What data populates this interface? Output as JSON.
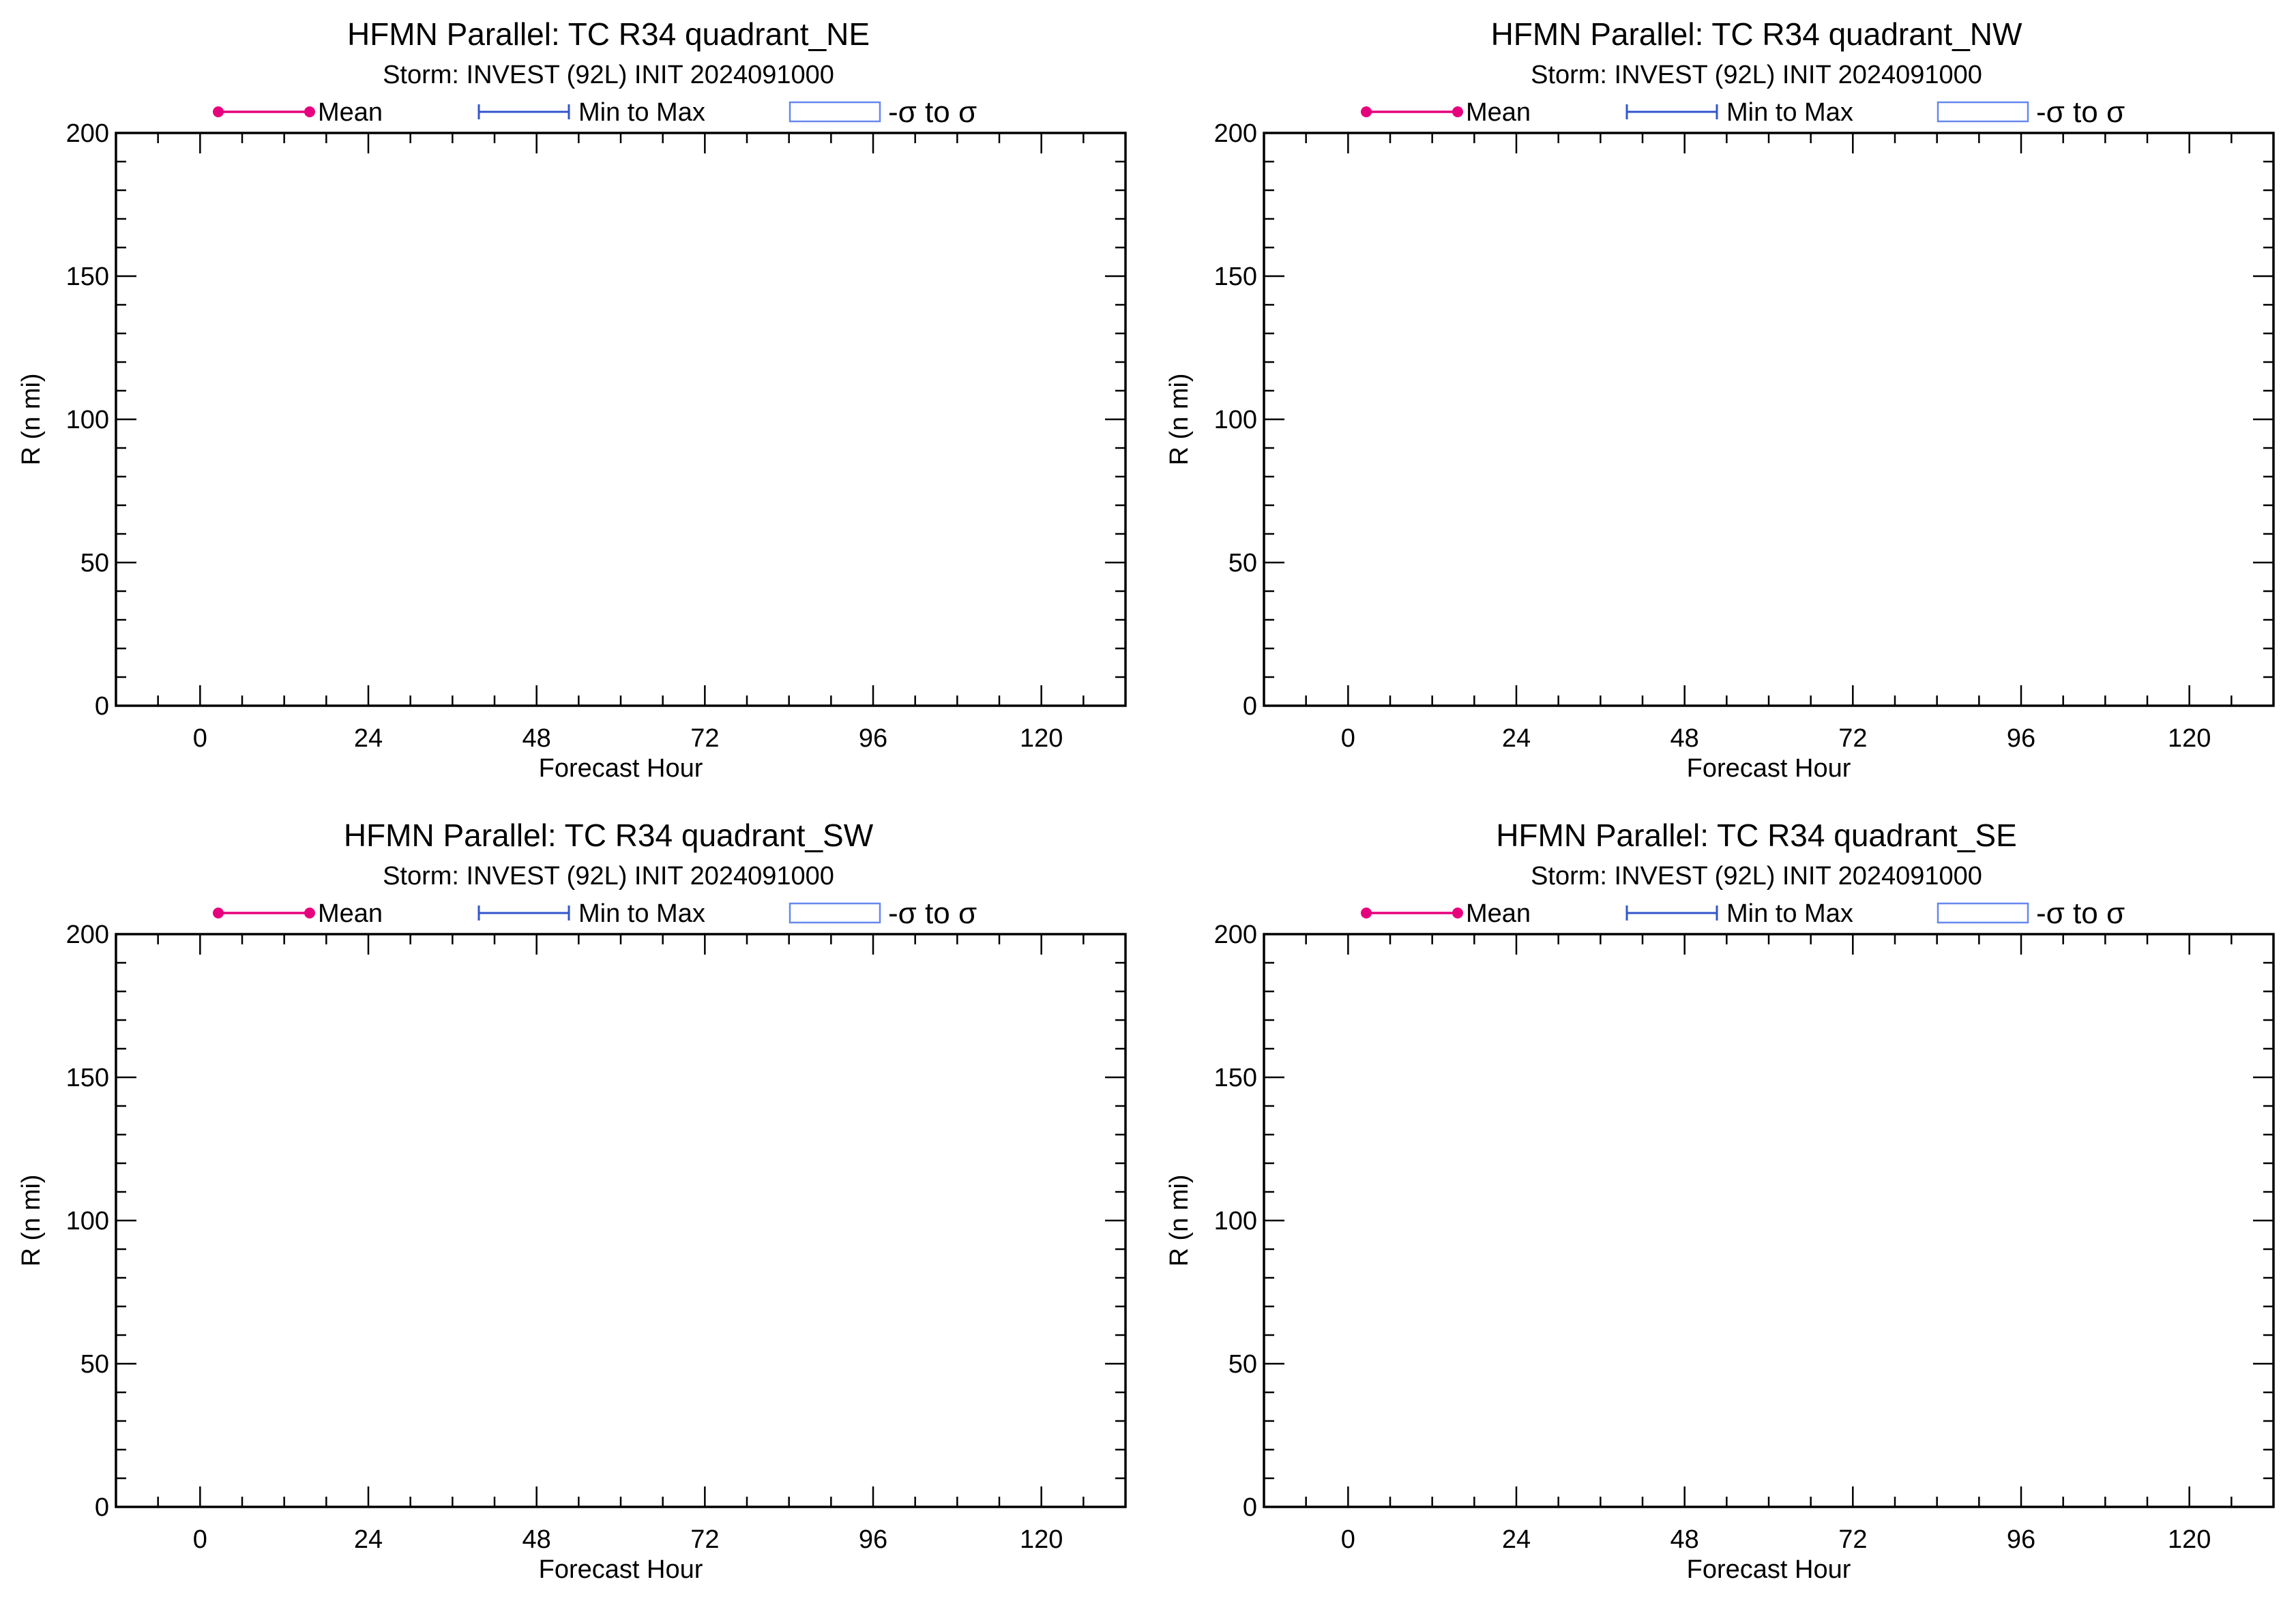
{
  "chart_data": [
    {
      "type": "line",
      "title": "HFMN Parallel: TC  R34 quadrant_NE",
      "subtitle": "Storm: INVEST (92L) INIT 2024091000",
      "xlabel": "Forecast Hour",
      "ylabel": "R (n mi)",
      "xlim": [
        -12,
        132
      ],
      "ylim": [
        0,
        200
      ],
      "xticks": [
        0,
        24,
        48,
        72,
        96,
        120
      ],
      "yticks": [
        0,
        50,
        100,
        150,
        200
      ],
      "legend": [
        {
          "label": "Mean",
          "style": "line-dots",
          "color": "#e6007e"
        },
        {
          "label": "Min to Max",
          "style": "errorbar",
          "color": "#3355cc"
        },
        {
          "label": "-σ to σ",
          "style": "box",
          "color": "#6688ee"
        }
      ],
      "series": []
    },
    {
      "type": "line",
      "title": "HFMN Parallel: TC  R34 quadrant_NW",
      "subtitle": "Storm: INVEST (92L) INIT 2024091000",
      "xlabel": "Forecast Hour",
      "ylabel": "R (n mi)",
      "xlim": [
        -12,
        132
      ],
      "ylim": [
        0,
        200
      ],
      "xticks": [
        0,
        24,
        48,
        72,
        96,
        120
      ],
      "yticks": [
        0,
        50,
        100,
        150,
        200
      ],
      "legend": [
        {
          "label": "Mean",
          "style": "line-dots",
          "color": "#e6007e"
        },
        {
          "label": "Min to Max",
          "style": "errorbar",
          "color": "#3355cc"
        },
        {
          "label": "-σ to σ",
          "style": "box",
          "color": "#6688ee"
        }
      ],
      "series": []
    },
    {
      "type": "line",
      "title": "HFMN Parallel: TC  R34 quadrant_SW",
      "subtitle": "Storm: INVEST (92L) INIT 2024091000",
      "xlabel": "Forecast Hour",
      "ylabel": "R (n mi)",
      "xlim": [
        -12,
        132
      ],
      "ylim": [
        0,
        200
      ],
      "xticks": [
        0,
        24,
        48,
        72,
        96,
        120
      ],
      "yticks": [
        0,
        50,
        100,
        150,
        200
      ],
      "legend": [
        {
          "label": "Mean",
          "style": "line-dots",
          "color": "#e6007e"
        },
        {
          "label": "Min to Max",
          "style": "errorbar",
          "color": "#3355cc"
        },
        {
          "label": "-σ to σ",
          "style": "box",
          "color": "#6688ee"
        }
      ],
      "series": []
    },
    {
      "type": "line",
      "title": "HFMN Parallel: TC  R34 quadrant_SE",
      "subtitle": "Storm: INVEST (92L) INIT 2024091000",
      "xlabel": "Forecast Hour",
      "ylabel": "R (n mi)",
      "xlim": [
        -12,
        132
      ],
      "ylim": [
        0,
        200
      ],
      "xticks": [
        0,
        24,
        48,
        72,
        96,
        120
      ],
      "yticks": [
        0,
        50,
        100,
        150,
        200
      ],
      "legend": [
        {
          "label": "Mean",
          "style": "line-dots",
          "color": "#e6007e"
        },
        {
          "label": "Min to Max",
          "style": "errorbar",
          "color": "#3355cc"
        },
        {
          "label": "-σ to σ",
          "style": "box",
          "color": "#6688ee"
        }
      ],
      "series": []
    }
  ]
}
